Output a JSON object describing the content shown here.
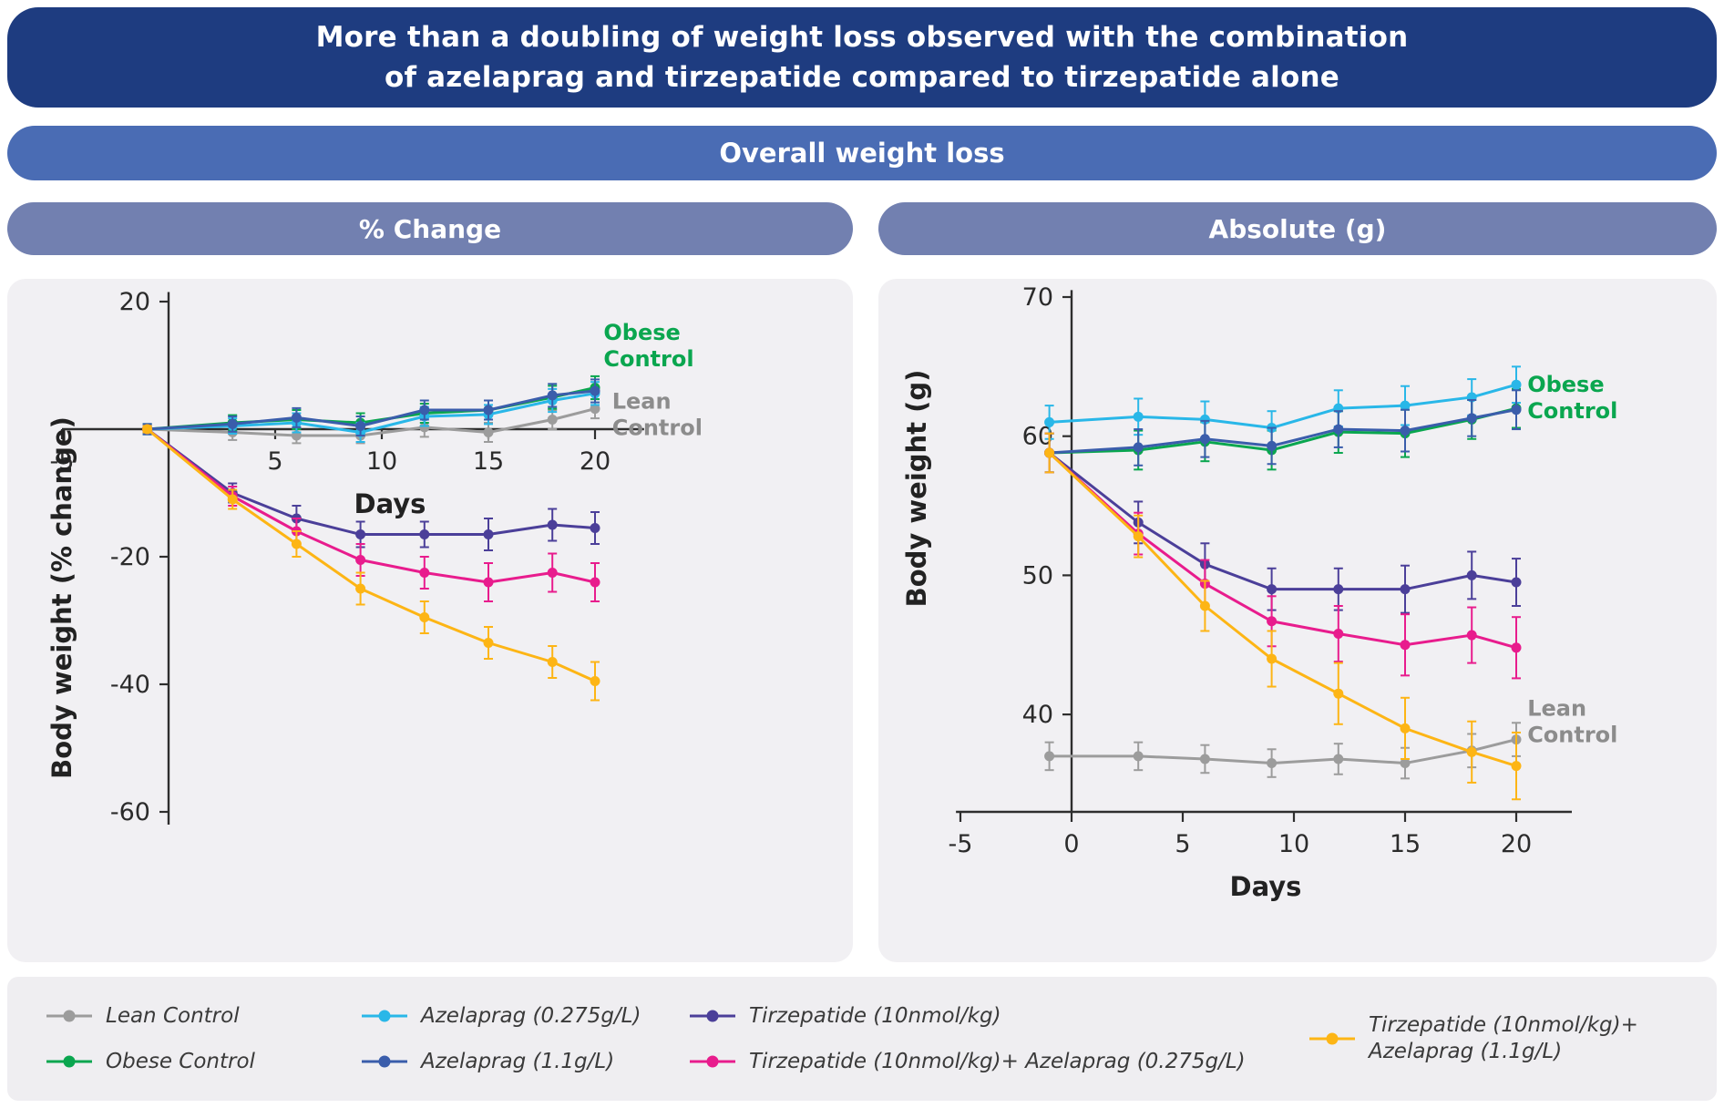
{
  "page": {
    "title_line1": "More than a doubling of weight loss observed with the combination",
    "title_line2": "of azelaprag and tirzepatide compared to tirzepatide alone",
    "subtitle": "Overall weight loss",
    "panel_headers": {
      "left": "% Change",
      "right": "Absolute (g)"
    }
  },
  "colors": {
    "banner_dark": "#1e3c80",
    "banner_mid": "#4a6cb4",
    "panel_header": "#7280b0",
    "panel_bg": "#f1f0f3",
    "legend_bg": "#efeef1",
    "lean_control": "#9c9c9c",
    "obese_control": "#0aa64f",
    "azelaprag_low": "#29b7e8",
    "azelaprag_high": "#3a5dab",
    "tirzepatide": "#4b3f99",
    "tirzepatide_azelaprag_low": "#e81c8d",
    "tirzepatide_azelaprag_high": "#fdb515"
  },
  "legend": {
    "columns": [
      {
        "items": [
          {
            "lines": [
              "Lean Control"
            ],
            "color": "#9c9c9c"
          },
          {
            "lines": [
              "Obese Control"
            ],
            "color": "#0aa64f"
          }
        ]
      },
      {
        "items": [
          {
            "lines": [
              "Azelaprag (0.275g/L)"
            ],
            "color": "#29b7e8"
          },
          {
            "lines": [
              "Azelaprag (1.1g/L)"
            ],
            "color": "#3a5dab"
          }
        ]
      },
      {
        "items": [
          {
            "lines": [
              "Tirzepatide (10nmol/kg)"
            ],
            "color": "#4b3f99"
          },
          {
            "lines": [
              "Tirzepatide (10nmol/kg)+ Azelaprag (0.275g/L)"
            ],
            "color": "#e81c8d"
          }
        ]
      },
      {
        "items": [
          {
            "lines": [
              "Tirzepatide (10nmol/kg)+",
              "Azelaprag (1.1g/L)"
            ],
            "color": "#fdb515"
          }
        ]
      }
    ]
  },
  "chart_data": [
    {
      "type": "line",
      "panel": "% Change",
      "xlabel": "Days",
      "ylabel": "Body weight (% change)",
      "xlim": [
        -5,
        22.3
      ],
      "ylim": [
        -62,
        21.5
      ],
      "x_ticks": [
        -5,
        5,
        10,
        15,
        20
      ],
      "y_ticks": [
        20,
        -20,
        -40,
        -60
      ],
      "x_axis_at_y": 0,
      "y_axis_at_x": 0,
      "x": [
        -1,
        3,
        6,
        9,
        12,
        15,
        18,
        20
      ],
      "series": [
        {
          "name": "Lean Control",
          "color": "#9c9c9c",
          "values": [
            0,
            -0.5,
            -1,
            -1,
            0.3,
            -0.5,
            1.5,
            3.2
          ],
          "err": [
            0.8,
            1.2,
            1.2,
            1.2,
            1.5,
            1.5,
            1.5,
            1.5
          ]
        },
        {
          "name": "Obese Control",
          "color": "#0aa64f",
          "values": [
            0,
            1,
            1.5,
            1,
            2.5,
            3,
            5,
            6.5
          ],
          "err": [
            0.8,
            1.2,
            1.5,
            1.5,
            1.5,
            1.5,
            1.8,
            1.8
          ]
        },
        {
          "name": "Azelaprag (0.275g/L)",
          "color": "#29b7e8",
          "values": [
            0,
            0.5,
            1,
            -0.5,
            2,
            2.3,
            4.5,
            5.6
          ],
          "err": [
            0.8,
            1.2,
            1.5,
            1.5,
            1.5,
            1.5,
            1.8,
            1.8
          ]
        },
        {
          "name": "Azelaprag (1.1g/L)",
          "color": "#3a5dab",
          "values": [
            0,
            0.8,
            1.8,
            0.5,
            3,
            3,
            5.3,
            6
          ],
          "err": [
            0.8,
            1.2,
            1.5,
            1.5,
            1.5,
            1.5,
            1.8,
            1.8
          ]
        },
        {
          "name": "Tirzepatide (10nmol/kg)",
          "color": "#4b3f99",
          "values": [
            0,
            -10,
            -14,
            -16.5,
            -16.5,
            -16.5,
            -15,
            -15.5
          ],
          "err": [
            0.5,
            1.5,
            2,
            2,
            2,
            2.5,
            2.5,
            2.5
          ]
        },
        {
          "name": "Tirzepatide (10nmol/kg)+ Azelaprag (0.275g/L)",
          "color": "#e81c8d",
          "values": [
            0,
            -10.5,
            -16,
            -20.5,
            -22.5,
            -24,
            -22.5,
            -24
          ],
          "err": [
            0.5,
            1.5,
            2,
            2.5,
            2.5,
            3,
            3,
            3
          ]
        },
        {
          "name": "Tirzepatide (10nmol/kg)+ Azelaprag (1.1g/L)",
          "color": "#fdb515",
          "values": [
            0,
            -11,
            -18,
            -25,
            -29.5,
            -33.5,
            -36.5,
            -39.5
          ],
          "err": [
            0.5,
            1.5,
            2,
            2.5,
            2.5,
            2.5,
            2.5,
            3
          ]
        }
      ],
      "annotations": [
        {
          "lines": [
            "Obese",
            "Control"
          ],
          "color": "#0aa64f",
          "x": 20.4,
          "y": 14
        },
        {
          "lines": [
            "Lean",
            "Control"
          ],
          "color": "#8c8c8c",
          "x": 20.8,
          "y": 3.2
        }
      ]
    },
    {
      "type": "line",
      "panel": "Absolute (g)",
      "xlabel": "Days",
      "ylabel": "Body weight (g)",
      "xlim": [
        -5.2,
        22.5
      ],
      "ylim": [
        33,
        70.5
      ],
      "x_ticks": [
        -5,
        0,
        5,
        10,
        15,
        20
      ],
      "y_ticks": [
        70,
        60,
        50,
        40
      ],
      "x_axis_at_y": 33,
      "y_axis_at_x": 0,
      "x": [
        -1,
        3,
        6,
        9,
        12,
        15,
        18,
        20
      ],
      "series": [
        {
          "name": "Lean Control",
          "color": "#9c9c9c",
          "values": [
            37,
            37,
            36.8,
            36.5,
            36.8,
            36.5,
            37.4,
            38.2
          ],
          "err": [
            1,
            1,
            1,
            1,
            1.1,
            1.1,
            1.2,
            1.2
          ]
        },
        {
          "name": "Obese Control",
          "color": "#0aa64f",
          "values": [
            58.8,
            59,
            59.6,
            59,
            60.3,
            60.2,
            61.2,
            62
          ],
          "err": [
            1.4,
            1.4,
            1.4,
            1.4,
            1.5,
            1.7,
            1.4,
            1.4
          ]
        },
        {
          "name": "Azelaprag (0.275g/L)",
          "color": "#29b7e8",
          "values": [
            61,
            61.4,
            61.2,
            60.6,
            62,
            62.2,
            62.8,
            63.7
          ],
          "err": [
            1.2,
            1.3,
            1.3,
            1.2,
            1.3,
            1.4,
            1.3,
            1.3
          ]
        },
        {
          "name": "Azelaprag (1.1g/L)",
          "color": "#3a5dab",
          "values": [
            58.8,
            59.2,
            59.8,
            59.3,
            60.5,
            60.4,
            61.3,
            61.9
          ],
          "err": [
            1.4,
            1.3,
            1.3,
            1.3,
            1.3,
            1.5,
            1.3,
            1.4
          ]
        },
        {
          "name": "Tirzepatide (10nmol/kg)",
          "color": "#4b3f99",
          "values": [
            58.8,
            53.8,
            50.8,
            49,
            49,
            49,
            50,
            49.5
          ],
          "err": [
            1.4,
            1.5,
            1.5,
            1.5,
            1.5,
            1.7,
            1.7,
            1.7
          ]
        },
        {
          "name": "Tirzepatide (10nmol/kg)+ Azelaprag (0.275g/L)",
          "color": "#e81c8d",
          "values": [
            58.8,
            53,
            49.4,
            46.7,
            45.8,
            45,
            45.7,
            44.8
          ],
          "err": [
            1.4,
            1.5,
            1.7,
            1.8,
            2,
            2.2,
            2,
            2.2
          ]
        },
        {
          "name": "Tirzepatide (10nmol/kg)+ Azelaprag (1.1g/L)",
          "color": "#fdb515",
          "values": [
            58.8,
            52.8,
            47.8,
            44,
            41.5,
            39,
            37.3,
            36.3
          ],
          "err": [
            1.4,
            1.5,
            1.8,
            2,
            2.2,
            2.2,
            2.2,
            2.4
          ]
        }
      ],
      "annotations": [
        {
          "lines": [
            "Obese",
            "Control"
          ],
          "color": "#0aa64f",
          "x": 20.5,
          "y": 63.2
        },
        {
          "lines": [
            "Lean",
            "Control"
          ],
          "color": "#8c8c8c",
          "x": 20.5,
          "y": 39.9
        }
      ]
    }
  ]
}
